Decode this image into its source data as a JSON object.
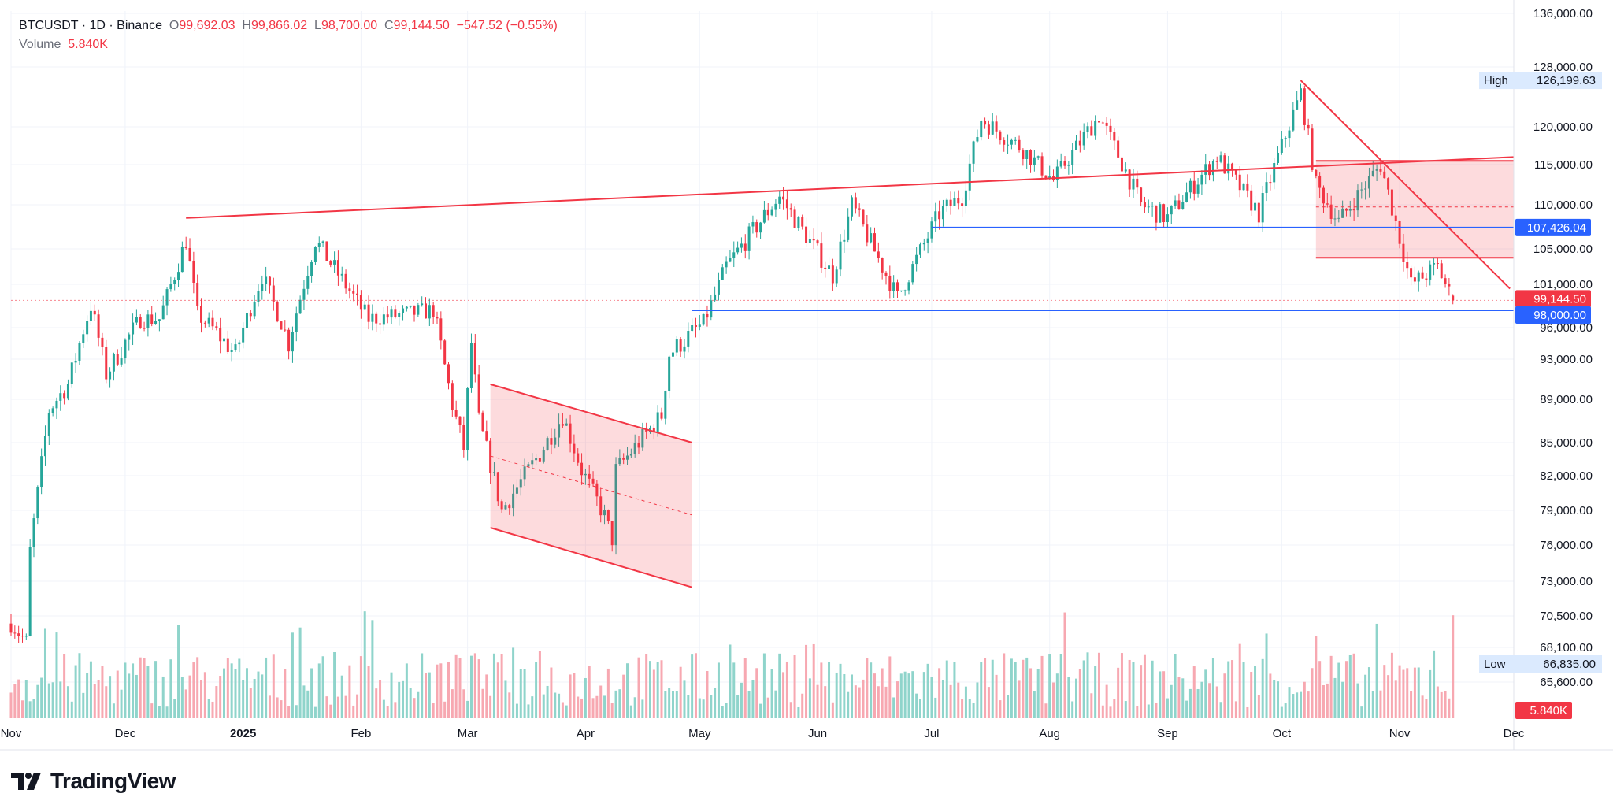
{
  "header": {
    "symbol": "BTCUSDT · 1D · Binance",
    "o_label": "O",
    "o_value": "99,692.03",
    "h_label": "H",
    "h_value": "99,866.02",
    "l_label": "L",
    "l_value": "98,700.00",
    "c_label": "C",
    "c_value": "99,144.50",
    "change": "−547.52 (−0.55%)",
    "volume_label": "Volume",
    "volume_value": "5.840K"
  },
  "brand": {
    "name": "TradingView"
  },
  "colors": {
    "up": "#26a69a",
    "down": "#f23645",
    "up_vol": "#8fd4cb",
    "down_vol": "#f7a8b1",
    "blue": "#2962ff",
    "grid": "#f0f3fa"
  },
  "chart_data": {
    "type": "candlestick",
    "title": "BTCUSDT · 1D · Binance",
    "y_ticks": [
      65600,
      68100,
      70500,
      73000,
      76000,
      79000,
      82000,
      85000,
      89000,
      93000,
      96000,
      101000,
      105000,
      110000,
      115000,
      120000,
      128000,
      136000
    ],
    "y_tick_labels": [
      "65,600.00",
      "68,100.00",
      "70,500.00",
      "73,000.00",
      "76,000.00",
      "79,000.00",
      "82,000.00",
      "85,000.00",
      "89,000.00",
      "93,000.00",
      "96,000.00",
      "101,000.00",
      "105,000.00",
      "110,000.00",
      "115,000.00",
      "120,000.00",
      "128,000.00",
      "136,000.00"
    ],
    "x_tick_labels": [
      {
        "date": "2024-11-01",
        "label": "Nov"
      },
      {
        "date": "2024-12-01",
        "label": "Dec"
      },
      {
        "date": "2025-01-01",
        "label": "2025"
      },
      {
        "date": "2025-02-01",
        "label": "Feb"
      },
      {
        "date": "2025-03-01",
        "label": "Mar"
      },
      {
        "date": "2025-04-01",
        "label": "Apr"
      },
      {
        "date": "2025-05-01",
        "label": "May"
      },
      {
        "date": "2025-06-01",
        "label": "Jun"
      },
      {
        "date": "2025-07-01",
        "label": "Jul"
      },
      {
        "date": "2025-08-01",
        "label": "Aug"
      },
      {
        "date": "2025-09-01",
        "label": "Sep"
      },
      {
        "date": "2025-10-01",
        "label": "Oct"
      },
      {
        "date": "2025-11-01",
        "label": "Nov"
      },
      {
        "date": "2025-12-01",
        "label": "Dec"
      }
    ],
    "x_range": [
      "2024-11-01",
      "2025-12-01"
    ],
    "close_anchors": [
      {
        "date": "2024-11-01",
        "close": 69500
      },
      {
        "date": "2024-11-05",
        "close": 68000
      },
      {
        "date": "2024-11-06",
        "close": 75500
      },
      {
        "date": "2024-11-11",
        "close": 88000
      },
      {
        "date": "2024-11-16",
        "close": 90500
      },
      {
        "date": "2024-11-22",
        "close": 98500
      },
      {
        "date": "2024-11-26",
        "close": 91500
      },
      {
        "date": "2024-12-05",
        "close": 97000
      },
      {
        "date": "2024-12-10",
        "close": 97000
      },
      {
        "date": "2024-12-17",
        "close": 106000
      },
      {
        "date": "2024-12-20",
        "close": 97500
      },
      {
        "date": "2024-12-30",
        "close": 93500
      },
      {
        "date": "2025-01-06",
        "close": 102000
      },
      {
        "date": "2025-01-13",
        "close": 94500
      },
      {
        "date": "2025-01-20",
        "close": 106000
      },
      {
        "date": "2025-01-27",
        "close": 101500
      },
      {
        "date": "2025-02-03",
        "close": 97000
      },
      {
        "date": "2025-02-20",
        "close": 98000
      },
      {
        "date": "2025-02-25",
        "close": 88500
      },
      {
        "date": "2025-02-28",
        "close": 84500
      },
      {
        "date": "2025-03-02",
        "close": 94500
      },
      {
        "date": "2025-03-04",
        "close": 87000
      },
      {
        "date": "2025-03-10",
        "close": 79000
      },
      {
        "date": "2025-03-20",
        "close": 84000
      },
      {
        "date": "2025-03-26",
        "close": 87500
      },
      {
        "date": "2025-03-31",
        "close": 82500
      },
      {
        "date": "2025-04-06",
        "close": 78500
      },
      {
        "date": "2025-04-08",
        "close": 76500
      },
      {
        "date": "2025-04-09",
        "close": 82500
      },
      {
        "date": "2025-04-21",
        "close": 87500
      },
      {
        "date": "2025-04-23",
        "close": 93500
      },
      {
        "date": "2025-05-02",
        "close": 96500
      },
      {
        "date": "2025-05-08",
        "close": 103000
      },
      {
        "date": "2025-05-22",
        "close": 111000
      },
      {
        "date": "2025-06-05",
        "close": 102000
      },
      {
        "date": "2025-06-10",
        "close": 110000
      },
      {
        "date": "2025-06-22",
        "close": 99500
      },
      {
        "date": "2025-07-03",
        "close": 109000
      },
      {
        "date": "2025-07-09",
        "close": 111000
      },
      {
        "date": "2025-07-14",
        "close": 121000
      },
      {
        "date": "2025-07-25",
        "close": 117000
      },
      {
        "date": "2025-08-02",
        "close": 113000
      },
      {
        "date": "2025-08-14",
        "close": 121500
      },
      {
        "date": "2025-08-25",
        "close": 110000
      },
      {
        "date": "2025-09-01",
        "close": 108500
      },
      {
        "date": "2025-09-14",
        "close": 116000
      },
      {
        "date": "2025-09-25",
        "close": 109000
      },
      {
        "date": "2025-10-06",
        "close": 124500
      },
      {
        "date": "2025-10-10",
        "close": 112500
      },
      {
        "date": "2025-10-16",
        "close": 108000
      },
      {
        "date": "2025-10-27",
        "close": 115000
      },
      {
        "date": "2025-11-04",
        "close": 101000
      },
      {
        "date": "2025-11-11",
        "close": 103000
      },
      {
        "date": "2025-11-15",
        "close": 99144.5
      }
    ],
    "stats": {
      "high_label": "High",
      "high": "126,199.63",
      "low_label": "Low",
      "low": "66,835.00"
    },
    "price_labels": {
      "level_1": "107,426.04",
      "last_price": "99,144.50",
      "level_2": "98,000.00",
      "volume_last": "5.840K"
    },
    "drawings": {
      "long_trendline": [
        {
          "date": "2024-12-17",
          "price": 108500
        },
        {
          "date": "2025-12-01",
          "price": 116000
        }
      ],
      "h_line_1": {
        "price": 107426.04,
        "from": "2025-07-01"
      },
      "h_line_2": {
        "price": 98000,
        "from": "2025-04-29"
      },
      "falling_channel": {
        "upper": [
          {
            "date": "2025-03-07",
            "price": 90500
          },
          {
            "date": "2025-04-29",
            "price": 85000
          }
        ],
        "lower": [
          {
            "date": "2025-03-07",
            "price": 77500
          },
          {
            "date": "2025-04-29",
            "price": 72500
          }
        ]
      },
      "oct_box": {
        "from": "2025-10-10",
        "to": "2025-12-01",
        "top": 115500,
        "bottom": 104000
      },
      "oct_downtrend": [
        {
          "date": "2025-10-06",
          "price": 126200
        },
        {
          "date": "2025-11-30",
          "price": 100500
        }
      ]
    }
  }
}
